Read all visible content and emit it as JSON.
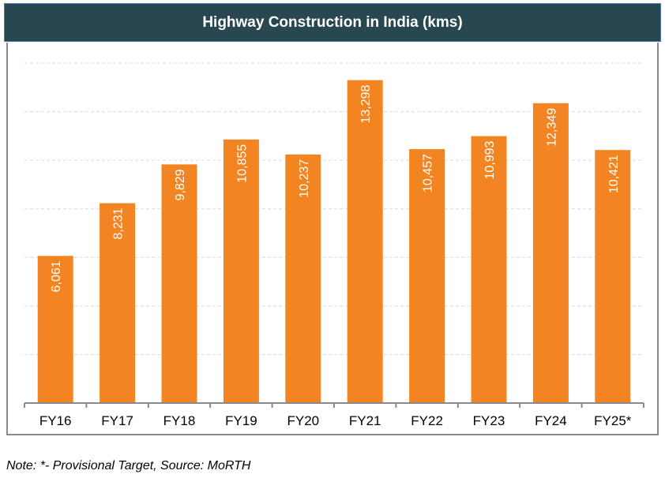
{
  "chart_data": {
    "type": "bar",
    "title": "Highway Construction in India (kms)",
    "categories": [
      "FY16",
      "FY17",
      "FY18",
      "FY19",
      "FY20",
      "FY21",
      "FY22",
      "FY23",
      "FY24",
      "FY25*"
    ],
    "values": [
      6061,
      8231,
      9829,
      10855,
      10237,
      13298,
      10457,
      10993,
      12349,
      10421
    ],
    "data_labels": [
      "6,061",
      "8,231",
      "9,829",
      "10,855",
      "10,237",
      "13,298",
      "10,457",
      "10,993",
      "12,349",
      "10,421"
    ],
    "ylim": [
      0,
      14000
    ],
    "y_gridline_step": 2000,
    "grid": true,
    "y_tick_labels_shown": false,
    "bar_color": "#f28522",
    "header_color": "#284750"
  },
  "note": "Note: *- Provisional Target, Source: MoRTH"
}
